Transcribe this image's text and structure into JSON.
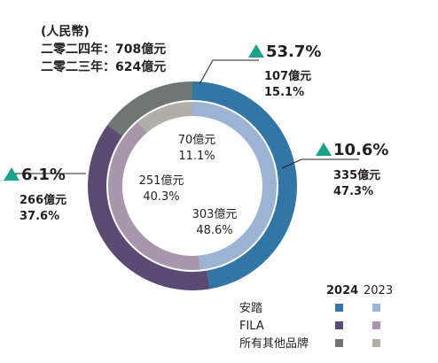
{
  "chart_data": {
    "type": "pie",
    "unit_note": "(人民幣)",
    "totals": [
      {
        "label": "二零二四年：708億元"
      },
      {
        "label": "二零二三年：624億元"
      }
    ],
    "legend": {
      "years": [
        "2024",
        "2023"
      ],
      "entries": [
        "安踏",
        "FILA",
        "所有其他品牌"
      ]
    },
    "series": [
      {
        "name": "2024",
        "categories": [
          "安踏",
          "FILA",
          "所有其他品牌"
        ],
        "values": [
          335,
          266,
          107
        ],
        "percent_labels": [
          "47.3%",
          "37.6%",
          "15.1%"
        ],
        "value_labels": [
          "335億元",
          "266億元",
          "107億元"
        ],
        "colors": [
          "#3176a5",
          "#5b4a72",
          "#6f7674"
        ]
      },
      {
        "name": "2023",
        "categories": [
          "安踏",
          "FILA",
          "所有其他品牌"
        ],
        "values": [
          303,
          251,
          70
        ],
        "percent_labels": [
          "48.6%",
          "40.3%",
          "11.1%"
        ],
        "value_labels": [
          "303億元",
          "251億元",
          "70億元"
        ],
        "colors": [
          "#9db3d4",
          "#a796ac",
          "#b1ada7"
        ]
      }
    ],
    "growth": [
      {
        "category": "安踏",
        "label": "10.6%"
      },
      {
        "category": "FILA",
        "label": "6.1%"
      },
      {
        "category": "所有其他品牌",
        "label": "53.7%"
      }
    ],
    "growth_color": "#1aa38a"
  }
}
